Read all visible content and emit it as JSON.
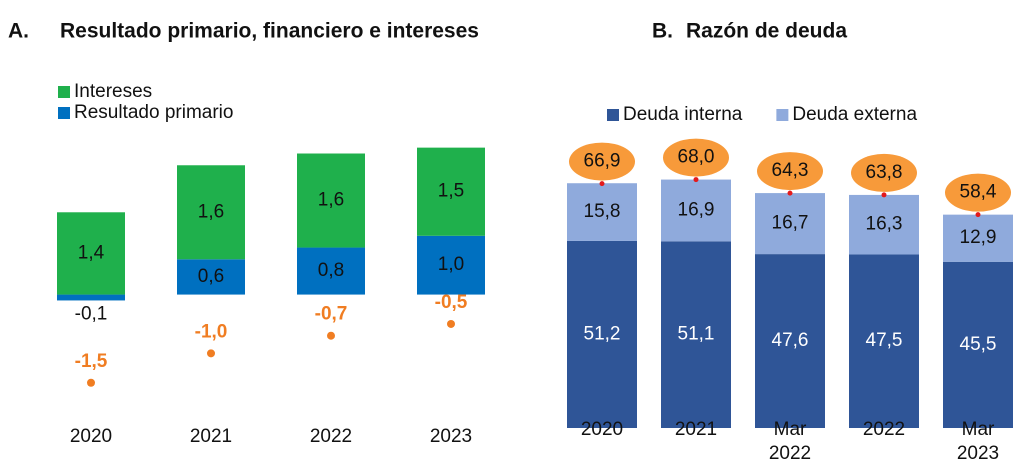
{
  "chart_data": [
    {
      "type": "bar",
      "stacked": true,
      "label": "A.",
      "title": "Resultado primario, financiero e intereses",
      "categories": [
        "2020",
        "2021",
        "2022",
        "2023"
      ],
      "series": [
        {
          "name": "Resultado primario",
          "color": "#0070c0",
          "values": [
            -0.1,
            0.6,
            0.8,
            1.0
          ],
          "value_labels": [
            "-0,1",
            "0,6",
            "0,8",
            "1,0"
          ]
        },
        {
          "name": "Intereses",
          "color": "#1fb04c",
          "values": [
            1.4,
            1.6,
            1.6,
            1.5
          ],
          "value_labels": [
            "1,4",
            "1,6",
            "1,6",
            "1,5"
          ]
        }
      ],
      "points": {
        "color": "#f07d22",
        "values": [
          -1.5,
          -1.0,
          -0.7,
          -0.5
        ],
        "value_labels": [
          "-1,5",
          "-1,0",
          "-0,7",
          "-0,5"
        ]
      },
      "ylim": [
        -2.1,
        2.8
      ]
    },
    {
      "type": "bar",
      "stacked": true,
      "label": "B.",
      "title": "Razón de deuda",
      "categories": [
        "2020",
        "2021",
        "Mar 2022",
        "2022",
        "Mar 2023"
      ],
      "series": [
        {
          "name": "Deuda interna",
          "color": "#2f5597",
          "values": [
            51.2,
            51.1,
            47.6,
            47.5,
            45.5
          ],
          "value_labels": [
            "51,2",
            "51,1",
            "47,6",
            "47,5",
            "45,5"
          ]
        },
        {
          "name": "Deuda externa",
          "color": "#8faadc",
          "values": [
            15.8,
            16.9,
            16.7,
            16.3,
            12.9
          ],
          "value_labels": [
            "15,8",
            "16,9",
            "16,7",
            "16,3",
            "12,9"
          ]
        }
      ],
      "totals": {
        "color": "#f79a3a",
        "values": [
          66.9,
          68.0,
          64.3,
          63.8,
          58.4
        ],
        "value_labels": [
          "66,9",
          "68,0",
          "64,3",
          "63,8",
          "58,4"
        ]
      },
      "ylim": [
        0,
        75
      ]
    }
  ]
}
